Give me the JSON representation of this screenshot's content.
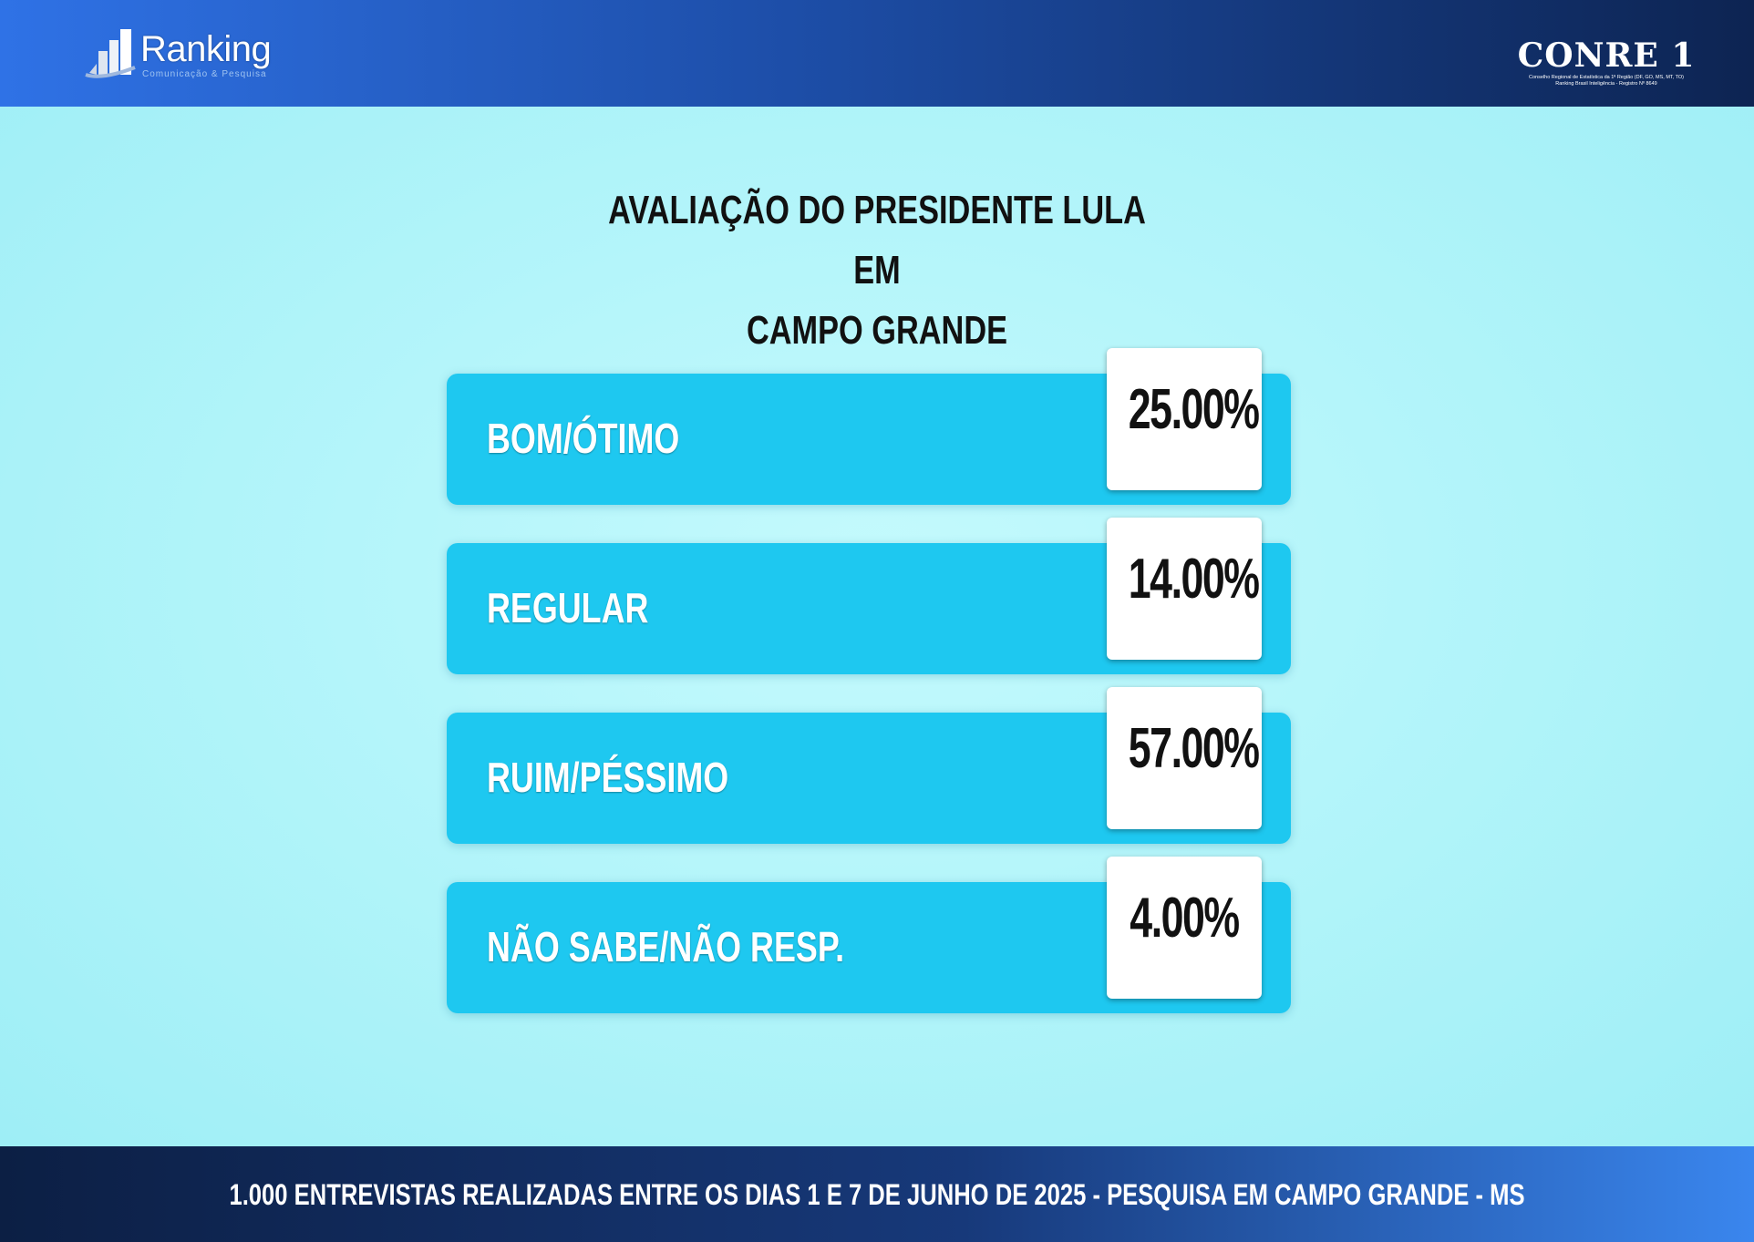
{
  "header": {
    "left_logo": {
      "brand": "Ranking",
      "tagline": "Comunicação & Pesquisa"
    },
    "right_logo": {
      "brand": "CONRE 1",
      "subtitle_line1": "Conselho Regional de Estatística da 1ª Região (DF, GO, MS, MT, TO)",
      "subtitle_line2": "Ranking Brasil Inteligência - Registro Nº 8649"
    }
  },
  "colors": {
    "bar": "#1ec8f0",
    "background": "#b6f7fb",
    "header": "#1d4ea8"
  },
  "chart_data": {
    "type": "bar",
    "title": "AVALIAÇÃO DO PRESIDENTE LULA EM CAMPO GRANDE",
    "title_line1": "AVALIAÇÃO DO PRESIDENTE LULA EM",
    "title_line2": "CAMPO GRANDE",
    "categories": [
      "BOM/ÓTIMO",
      "REGULAR",
      "RUIM/PÉSSIMO",
      "NÃO SABE/NÃO RESP."
    ],
    "values": [
      25.0,
      14.0,
      57.0,
      4.0
    ],
    "value_labels": [
      "25.00%",
      "14.00%",
      "57.00%",
      "4.00%"
    ]
  },
  "footer": {
    "text": "1.000 ENTREVISTAS REALIZADAS ENTRE OS DIAS 1 E 7 DE JUNHO DE 2025  - PESQUISA EM CAMPO GRANDE - MS"
  }
}
